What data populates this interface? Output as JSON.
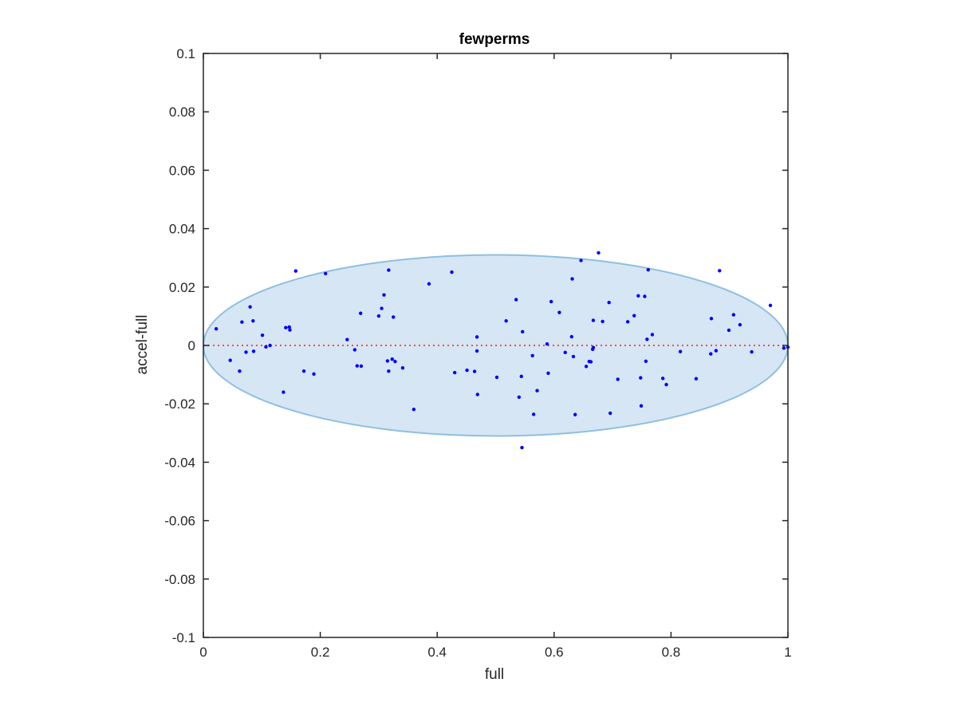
{
  "chart_data": {
    "type": "scatter",
    "title": "fewperms",
    "xlabel": "full",
    "ylabel": "accel-full",
    "xlim": [
      0,
      1
    ],
    "ylim": [
      -0.1,
      0.1
    ],
    "x_ticks": [
      "0",
      "0.2",
      "0.4",
      "0.6",
      "0.8",
      "1"
    ],
    "y_ticks": [
      "0.1",
      "0.08",
      "0.06",
      "0.04",
      "0.02",
      "0",
      "-0.02",
      "-0.04",
      "-0.06",
      "-0.08",
      "-0.1"
    ],
    "x_tick_values": [
      0,
      0.2,
      0.4,
      0.6,
      0.8,
      1
    ],
    "y_tick_values": [
      0.1,
      0.08,
      0.06,
      0.04,
      0.02,
      0,
      -0.02,
      -0.04,
      -0.06,
      -0.08,
      -0.1
    ],
    "grid": false,
    "colors": {
      "points": "#0000ff",
      "ellipse_fill": "#d6e6f4",
      "ellipse_edge": "#8fbfe0",
      "reference_line": "#ff4b4b",
      "axes": "#262626"
    },
    "reference_line": {
      "y": 0,
      "style": "dotted"
    },
    "ellipse": {
      "cx": 0.5,
      "cy": 0,
      "rx": 0.5,
      "ry": 0.031
    },
    "points": [
      [
        0.022,
        0.0057
      ],
      [
        0.046,
        -0.0051
      ],
      [
        0.062,
        -0.0088
      ],
      [
        0.066,
        0.008
      ],
      [
        0.073,
        -0.0023
      ],
      [
        0.08,
        0.0132
      ],
      [
        0.085,
        0.0084
      ],
      [
        0.086,
        -0.002
      ],
      [
        0.101,
        0.0035
      ],
      [
        0.107,
        -0.0005
      ],
      [
        0.114,
        0.0
      ],
      [
        0.137,
        -0.016
      ],
      [
        0.141,
        0.0061
      ],
      [
        0.147,
        0.0063
      ],
      [
        0.148,
        0.0053
      ],
      [
        0.158,
        0.0255
      ],
      [
        0.172,
        -0.0088
      ],
      [
        0.189,
        -0.0098
      ],
      [
        0.209,
        0.0246
      ],
      [
        0.246,
        0.002
      ],
      [
        0.259,
        -0.0015
      ],
      [
        0.263,
        -0.007
      ],
      [
        0.269,
        0.011
      ],
      [
        0.27,
        -0.0071
      ],
      [
        0.3,
        0.0101
      ],
      [
        0.305,
        0.0127
      ],
      [
        0.309,
        0.0173
      ],
      [
        0.315,
        -0.0053
      ],
      [
        0.317,
        0.0258
      ],
      [
        0.317,
        -0.0088
      ],
      [
        0.323,
        -0.0047
      ],
      [
        0.325,
        0.0097
      ],
      [
        0.328,
        -0.0055
      ],
      [
        0.341,
        -0.0077
      ],
      [
        0.36,
        -0.0219
      ],
      [
        0.386,
        0.0211
      ],
      [
        0.425,
        0.0251
      ],
      [
        0.43,
        -0.0093
      ],
      [
        0.451,
        -0.0085
      ],
      [
        0.464,
        -0.0089
      ],
      [
        0.468,
        0.0029
      ],
      [
        0.468,
        -0.0019
      ],
      [
        0.469,
        -0.0168
      ],
      [
        0.502,
        -0.0109
      ],
      [
        0.518,
        0.0084
      ],
      [
        0.535,
        0.0157
      ],
      [
        0.54,
        -0.0177
      ],
      [
        0.544,
        -0.0106
      ],
      [
        0.545,
        -0.035
      ],
      [
        0.546,
        0.0047
      ],
      [
        0.563,
        -0.0035
      ],
      [
        0.565,
        -0.0236
      ],
      [
        0.571,
        -0.0155
      ],
      [
        0.588,
        0.0005
      ],
      [
        0.59,
        -0.0095
      ],
      [
        0.595,
        0.015
      ],
      [
        0.609,
        0.0113
      ],
      [
        0.619,
        -0.0024
      ],
      [
        0.63,
        0.003
      ],
      [
        0.631,
        0.0228
      ],
      [
        0.633,
        -0.0038
      ],
      [
        0.636,
        -0.0237
      ],
      [
        0.646,
        0.0291
      ],
      [
        0.655,
        -0.0072
      ],
      [
        0.66,
        -0.0055
      ],
      [
        0.663,
        -0.0056
      ],
      [
        0.666,
        -0.0013
      ],
      [
        0.667,
        0.0086
      ],
      [
        0.667,
        -0.0007
      ],
      [
        0.676,
        0.0317
      ],
      [
        0.683,
        0.0082
      ],
      [
        0.694,
        0.0147
      ],
      [
        0.696,
        -0.0232
      ],
      [
        0.709,
        -0.0116
      ],
      [
        0.726,
        0.0081
      ],
      [
        0.737,
        0.0102
      ],
      [
        0.744,
        0.017
      ],
      [
        0.748,
        -0.0111
      ],
      [
        0.749,
        -0.0207
      ],
      [
        0.755,
        0.0168
      ],
      [
        0.757,
        -0.0054
      ],
      [
        0.759,
        0.0021
      ],
      [
        0.761,
        0.0259
      ],
      [
        0.768,
        0.0037
      ],
      [
        0.786,
        -0.0113
      ],
      [
        0.792,
        -0.0134
      ],
      [
        0.816,
        -0.0021
      ],
      [
        0.843,
        -0.0114
      ],
      [
        0.868,
        -0.0029
      ],
      [
        0.869,
        0.0092
      ],
      [
        0.877,
        -0.0018
      ],
      [
        0.883,
        0.0256
      ],
      [
        0.899,
        0.0052
      ],
      [
        0.907,
        0.0105
      ],
      [
        0.918,
        0.0071
      ],
      [
        0.938,
        -0.0022
      ],
      [
        0.97,
        0.0137
      ],
      [
        0.993,
        -0.0009
      ],
      [
        1.0,
        -0.0006
      ]
    ]
  }
}
